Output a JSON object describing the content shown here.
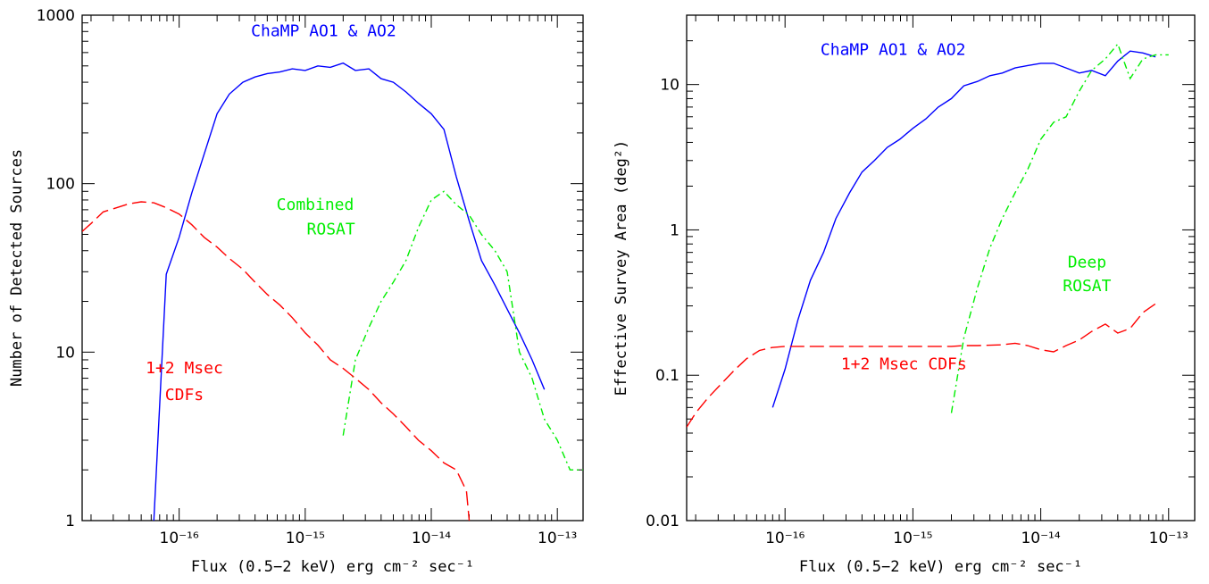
{
  "chart_data": [
    {
      "type": "line",
      "xscale": "log",
      "yscale": "log",
      "xlim": [
        1.7e-17,
        1.6e-13
      ],
      "ylim": [
        1,
        1000
      ],
      "xlabel": "Flux (0.5−2 keV) erg cm⁻² sec⁻¹",
      "ylabel": "Number of Detected Sources",
      "xticks": [
        {
          "value": 1e-16,
          "label": "10⁻¹⁶"
        },
        {
          "value": 1e-15,
          "label": "10⁻¹⁵"
        },
        {
          "value": 1e-14,
          "label": "10⁻¹⁴"
        },
        {
          "value": 1e-13,
          "label": "10⁻¹³"
        }
      ],
      "yticks": [
        {
          "value": 1,
          "label": "1"
        },
        {
          "value": 10,
          "label": "10"
        },
        {
          "value": 100,
          "label": "100"
        },
        {
          "value": 1000,
          "label": "1000"
        }
      ],
      "series": [
        {
          "name": "ChaMP AO1 & AO2",
          "color": "#0000ff",
          "dash": "solid",
          "x": [
            6.3e-17,
            7.9e-17,
            1e-16,
            1.26e-16,
            1.58e-16,
            2e-16,
            2.5e-16,
            3.2e-16,
            4e-16,
            5e-16,
            6.3e-16,
            7.9e-16,
            1e-15,
            1.26e-15,
            1.58e-15,
            2e-15,
            2.5e-15,
            3.2e-15,
            4e-15,
            5e-15,
            6.3e-15,
            7.9e-15,
            1e-14,
            1.26e-14,
            1.58e-14,
            2e-14,
            2.5e-14,
            3.2e-14,
            4e-14,
            5e-14,
            6.3e-14,
            7.9e-14
          ],
          "y": [
            1,
            29,
            48,
            88,
            150,
            260,
            340,
            400,
            430,
            450,
            460,
            480,
            470,
            500,
            490,
            520,
            470,
            480,
            420,
            400,
            350,
            300,
            260,
            210,
            110,
            60,
            35,
            25,
            18,
            13,
            9,
            6
          ]
        },
        {
          "name": "Combined ROSAT",
          "color": "#00ee00",
          "dash": "8,4,2,4",
          "x": [
            2e-15,
            2.5e-15,
            3.2e-15,
            4e-15,
            5e-15,
            6.3e-15,
            7.9e-15,
            1e-14,
            1.26e-14,
            1.58e-14,
            2e-14,
            2.5e-14,
            3.2e-14,
            4e-14,
            5e-14,
            6.3e-14,
            7.9e-14,
            1e-13,
            1.26e-13,
            1.6e-13
          ],
          "y": [
            3.2,
            9,
            14,
            20,
            26,
            35,
            55,
            80,
            90,
            75,
            65,
            50,
            40,
            30,
            10,
            7,
            4,
            3,
            2,
            2
          ]
        },
        {
          "name": "1+2 Msec CDFs",
          "color": "#ff0000",
          "dash": "16,6",
          "x": [
            1.7e-17,
            2e-17,
            2.5e-17,
            3.2e-17,
            4e-17,
            5e-17,
            6.3e-17,
            7.9e-17,
            1e-16,
            1.26e-16,
            1.58e-16,
            2e-16,
            2.5e-16,
            3.2e-16,
            4e-16,
            5e-16,
            6.3e-16,
            7.9e-16,
            1e-15,
            1.26e-15,
            1.58e-15,
            2e-15,
            2.5e-15,
            3.2e-15,
            4e-15,
            5e-15,
            6.3e-15,
            7.9e-15,
            1e-14,
            1.26e-14,
            1.58e-14,
            1.9e-14,
            2e-14
          ],
          "y": [
            52,
            58,
            68,
            72,
            76,
            78,
            77,
            72,
            66,
            57,
            48,
            42,
            36,
            31,
            26,
            22,
            19,
            16,
            13,
            11,
            9,
            8,
            7,
            6,
            5,
            4.3,
            3.6,
            3,
            2.6,
            2.2,
            2,
            1.5,
            1
          ]
        }
      ],
      "annotations": [
        {
          "text": "ChaMP AO1 & AO2",
          "x": 1.4e-15,
          "y": 750,
          "color": "#0000ff"
        },
        {
          "text": "Combined",
          "x": 1.2e-15,
          "y": 70,
          "color": "#00ee00"
        },
        {
          "text": "ROSAT",
          "x": 1.6e-15,
          "y": 50,
          "color": "#00ee00"
        },
        {
          "text": "1+2 Msec",
          "x": 1.1e-16,
          "y": 7.5,
          "color": "#ff0000"
        },
        {
          "text": "CDFs",
          "x": 1.1e-16,
          "y": 5.2,
          "color": "#ff0000"
        }
      ]
    },
    {
      "type": "line",
      "xscale": "log",
      "yscale": "log",
      "xlim": [
        1.7e-17,
        1.6e-13
      ],
      "ylim": [
        0.01,
        30
      ],
      "xlabel": "Flux (0.5−2 keV) erg cm⁻² sec⁻¹",
      "ylabel": "Effective Survey Area (deg²)",
      "xticks": [
        {
          "value": 1e-16,
          "label": "10⁻¹⁶"
        },
        {
          "value": 1e-15,
          "label": "10⁻¹⁵"
        },
        {
          "value": 1e-14,
          "label": "10⁻¹⁴"
        },
        {
          "value": 1e-13,
          "label": "10⁻¹³"
        }
      ],
      "yticks": [
        {
          "value": 0.01,
          "label": "0.01"
        },
        {
          "value": 0.1,
          "label": "0.1"
        },
        {
          "value": 1,
          "label": "1"
        },
        {
          "value": 10,
          "label": "10"
        }
      ],
      "series": [
        {
          "name": "ChaMP AO1 & AO2",
          "color": "#0000ff",
          "dash": "solid",
          "x": [
            8e-17,
            1e-16,
            1.26e-16,
            1.58e-16,
            2e-16,
            2.5e-16,
            3.2e-16,
            4e-16,
            5e-16,
            6.3e-16,
            7.9e-16,
            1e-15,
            1.26e-15,
            1.58e-15,
            2e-15,
            2.5e-15,
            3.2e-15,
            4e-15,
            5e-15,
            6.3e-15,
            7.9e-15,
            1e-14,
            1.26e-14,
            1.58e-14,
            2e-14,
            2.5e-14,
            3.2e-14,
            4e-14,
            5e-14,
            6.3e-14,
            7.9e-14
          ],
          "y": [
            0.06,
            0.11,
            0.24,
            0.45,
            0.7,
            1.2,
            1.8,
            2.5,
            3.0,
            3.7,
            4.2,
            5.0,
            5.8,
            7.0,
            8.0,
            9.8,
            10.5,
            11.5,
            12.0,
            13.0,
            13.5,
            14.0,
            14.0,
            13.0,
            12.0,
            12.5,
            11.5,
            14.5,
            17.0,
            16.5,
            15.5
          ]
        },
        {
          "name": "Deep ROSAT",
          "color": "#00ee00",
          "dash": "8,4,2,4",
          "x": [
            2e-15,
            2.5e-15,
            3.2e-15,
            4e-15,
            5e-15,
            6.3e-15,
            7.9e-15,
            1e-14,
            1.26e-14,
            1.58e-14,
            2e-14,
            2.5e-14,
            3.2e-14,
            4e-14,
            5e-14,
            6.3e-14,
            7.9e-14,
            1e-13
          ],
          "y": [
            0.055,
            0.18,
            0.4,
            0.75,
            1.2,
            1.8,
            2.6,
            4.2,
            5.5,
            6.0,
            9.0,
            12.5,
            15.0,
            19.0,
            11.0,
            15.0,
            16.0,
            16.0
          ]
        },
        {
          "name": "1+2 Msec CDFs",
          "color": "#ff0000",
          "dash": "16,6",
          "x": [
            1.7e-17,
            2e-17,
            2.5e-17,
            3.2e-17,
            4e-17,
            5e-17,
            6.3e-17,
            7.9e-17,
            1e-16,
            1.26e-16,
            1.58e-16,
            2e-16,
            2.5e-16,
            3.2e-16,
            4e-16,
            5e-16,
            6.3e-16,
            7.9e-16,
            1e-15,
            1.26e-15,
            1.58e-15,
            2e-15,
            2.5e-15,
            3.2e-15,
            4e-15,
            5e-15,
            6.3e-15,
            7.9e-15,
            1e-14,
            1.26e-14,
            1.58e-14,
            2e-14,
            2.5e-14,
            3.2e-14,
            4e-14,
            5e-14,
            6.3e-14,
            7.9e-14
          ],
          "y": [
            0.044,
            0.055,
            0.07,
            0.088,
            0.108,
            0.13,
            0.148,
            0.155,
            0.158,
            0.158,
            0.158,
            0.158,
            0.158,
            0.158,
            0.158,
            0.158,
            0.158,
            0.158,
            0.158,
            0.158,
            0.158,
            0.158,
            0.16,
            0.16,
            0.161,
            0.162,
            0.166,
            0.16,
            0.15,
            0.145,
            0.16,
            0.175,
            0.2,
            0.225,
            0.195,
            0.21,
            0.27,
            0.31
          ]
        }
      ],
      "annotations": [
        {
          "text": "ChaMP AO1 & AO2",
          "x": 7e-16,
          "y": 16,
          "color": "#0000ff"
        },
        {
          "text": "Deep",
          "x": 2.3e-14,
          "y": 0.55,
          "color": "#00ee00"
        },
        {
          "text": "ROSAT",
          "x": 2.3e-14,
          "y": 0.38,
          "color": "#00ee00"
        },
        {
          "text": "1+2 Msec CDFs",
          "x": 8.5e-16,
          "y": 0.11,
          "color": "#ff0000"
        }
      ]
    }
  ]
}
